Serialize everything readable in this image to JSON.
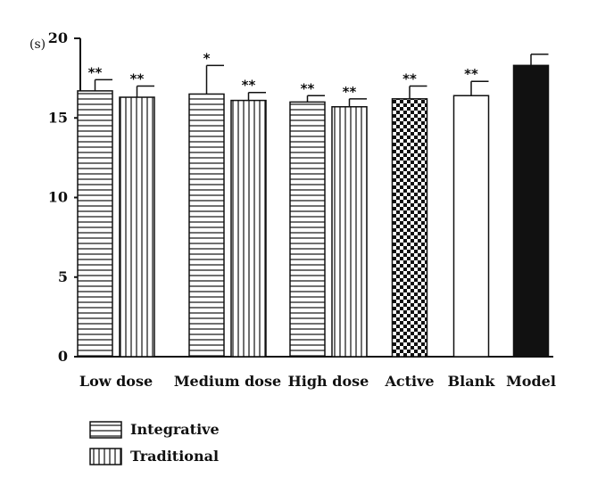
{
  "chart_data": {
    "type": "bar",
    "y_unit": "(s)",
    "ylim": [
      0,
      20
    ],
    "yticks": [
      0,
      5,
      10,
      15,
      20
    ],
    "groups": [
      {
        "label": "Low dose",
        "bars": [
          {
            "series": "Integrative",
            "value": 16.7,
            "error": 0.7,
            "sig": "**"
          },
          {
            "series": "Traditional",
            "value": 16.3,
            "error": 0.7,
            "sig": "**"
          }
        ]
      },
      {
        "label": "Medium dose",
        "bars": [
          {
            "series": "Integrative",
            "value": 16.5,
            "error": 1.8,
            "sig": "*"
          },
          {
            "series": "Traditional",
            "value": 16.1,
            "error": 0.5,
            "sig": "**"
          }
        ]
      },
      {
        "label": "High dose",
        "bars": [
          {
            "series": "Integrative",
            "value": 16.0,
            "error": 0.4,
            "sig": "**"
          },
          {
            "series": "Traditional",
            "value": 15.7,
            "error": 0.5,
            "sig": "**"
          }
        ]
      },
      {
        "label": "Active",
        "bars": [
          {
            "series": "Active",
            "value": 16.2,
            "error": 0.8,
            "sig": "**"
          }
        ]
      },
      {
        "label": "Blank",
        "bars": [
          {
            "series": "Blank",
            "value": 16.4,
            "error": 0.9,
            "sig": "**"
          }
        ]
      },
      {
        "label": "Model",
        "bars": [
          {
            "series": "Model",
            "value": 18.3,
            "error": 0.7,
            "sig": ""
          }
        ]
      }
    ],
    "series_styles": {
      "Integrative": "horizontal-stripes",
      "Traditional": "vertical-stripes",
      "Active": "checkerboard",
      "Blank": "solid-white",
      "Model": "solid-black"
    },
    "legend": [
      {
        "label": "Integrative",
        "pattern": "horizontal-stripes"
      },
      {
        "label": "Traditional",
        "pattern": "vertical-stripes"
      }
    ],
    "legend_position": "bottom-left"
  }
}
